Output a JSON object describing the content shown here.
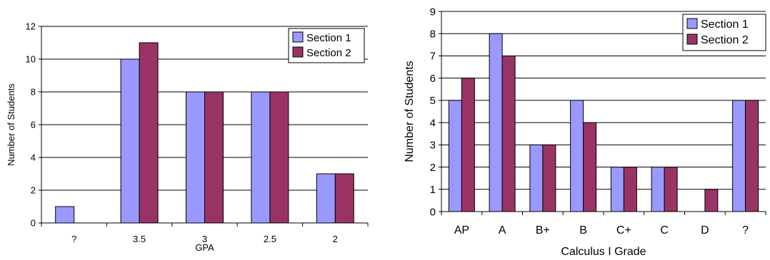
{
  "chart_data": [
    {
      "type": "bar",
      "title": "",
      "xlabel": "GPA",
      "ylabel": "Number of Students",
      "categories": [
        "?",
        "3.5",
        "3",
        "2.5",
        "2"
      ],
      "ylim": [
        0,
        12
      ],
      "yticks": [
        0,
        2,
        4,
        6,
        8,
        10,
        12
      ],
      "grid": true,
      "legend_position": "top-right",
      "series": [
        {
          "name": "Section 1",
          "color": "#9999FF",
          "values": [
            1,
            10,
            8,
            8,
            3
          ]
        },
        {
          "name": "Section 2",
          "color": "#993366",
          "values": [
            0,
            11,
            8,
            8,
            3
          ]
        }
      ]
    },
    {
      "type": "bar",
      "title": "",
      "xlabel": "Calculus I Grade",
      "ylabel": "Number of Students",
      "categories": [
        "AP",
        "A",
        "B+",
        "B",
        "C+",
        "C",
        "D",
        "?"
      ],
      "ylim": [
        0,
        9
      ],
      "yticks": [
        0,
        1,
        2,
        3,
        4,
        5,
        6,
        7,
        8,
        9
      ],
      "grid": true,
      "legend_position": "top-right",
      "series": [
        {
          "name": "Section 1",
          "color": "#9999FF",
          "values": [
            5,
            8,
            3,
            5,
            2,
            2,
            0,
            5
          ]
        },
        {
          "name": "Section 2",
          "color": "#993366",
          "values": [
            6,
            7,
            3,
            4,
            2,
            2,
            1,
            5
          ]
        }
      ]
    }
  ]
}
